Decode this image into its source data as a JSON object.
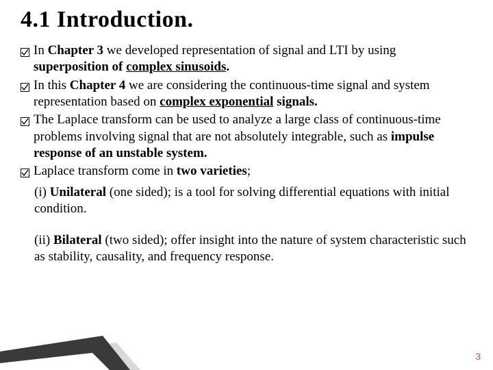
{
  "title": "4.1 Introduction.",
  "bullets": [
    {
      "html": "In <b>Chapter 3</b> we developed representation of signal and LTI by using <b>superposition of <u>complex sinusoids</u>.</b>"
    },
    {
      "html": "In this <b>Chapter 4</b> we are considering the continuous-time signal and system representation based on <b><u>complex exponential</u> signals.</b>"
    },
    {
      "html": "The Laplace transform can be used to analyze a large class of continuous-time problems involving signal that are not absolutely integrable, such as <b>impulse response of an unstable system.</b>"
    },
    {
      "html": "Laplace transform come in <b>two varieties</b>;"
    }
  ],
  "sub1": "(i) <b>Unilateral</b> (one sided); is a tool for solving differential equations with initial condition.",
  "sub2": "(ii) <b>Bilateral</b> (two sided); offer insight into the nature of system characteristic such as stability, causality, and frequency response.",
  "pageNumber": "3",
  "colors": {
    "pageNum": "#b84a8a",
    "accentDark": "#3a3a3a",
    "accentLight": "#d9d9d9"
  }
}
